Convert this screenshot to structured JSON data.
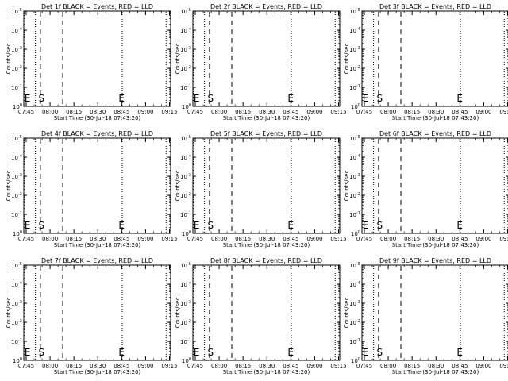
{
  "chart_data": [
    {
      "type": "line",
      "title": "Det 1f BLACK = Events, RED = LLD",
      "xlabel": "Start Time (30-Jul-18 07:43:20)",
      "ylabel": "Counts/sec",
      "xticks": [
        "07:45",
        "08:00",
        "08:15",
        "08:30",
        "08:45",
        "09:00",
        "09:15"
      ],
      "yticks": [
        "10^0",
        "10^-1",
        "10^-2",
        "10^-3",
        "10^-4",
        "10^-5"
      ],
      "yscale": "log",
      "markers": [
        "E",
        "S",
        "E"
      ],
      "series": []
    },
    {
      "type": "line",
      "title": "Det 2f BLACK = Events, RED = LLD",
      "xlabel": "Start Time (30-Jul-18 07:43:20)",
      "ylabel": "Counts/sec",
      "xticks": [
        "07:45",
        "08:00",
        "08:15",
        "08:30",
        "08:45",
        "09:00",
        "09:15"
      ],
      "yticks": [
        "10^0",
        "10^-1",
        "10^-2",
        "10^-3",
        "10^-4",
        "10^-5"
      ],
      "yscale": "log",
      "markers": [
        "E",
        "S",
        "E"
      ],
      "series": []
    },
    {
      "type": "line",
      "title": "Det 3f BLACK = Events, RED = LLD",
      "xlabel": "Start Time (30-Jul-18 07:43:20)",
      "ylabel": "Counts/sec",
      "xticks": [
        "07:45",
        "08:00",
        "08:15",
        "08:30",
        "08:45",
        "09:00",
        "09:15"
      ],
      "yticks": [
        "10^0",
        "10^-1",
        "10^-2",
        "10^-3",
        "10^-4",
        "10^-5"
      ],
      "yscale": "log",
      "markers": [
        "E",
        "S",
        "E"
      ],
      "series": []
    },
    {
      "type": "line",
      "title": "Det 4f BLACK = Events, RED = LLD",
      "xlabel": "Start Time (30-Jul-18 07:43:20)",
      "ylabel": "Counts/sec",
      "xticks": [
        "07:45",
        "08:00",
        "08:15",
        "08:30",
        "08:45",
        "09:00",
        "09:15"
      ],
      "yticks": [
        "10^0",
        "10^-1",
        "10^-2",
        "10^-3",
        "10^-4",
        "10^-5"
      ],
      "yscale": "log",
      "markers": [
        "E",
        "S",
        "E"
      ],
      "series": []
    },
    {
      "type": "line",
      "title": "Det 5f BLACK = Events, RED = LLD",
      "xlabel": "Start Time (30-Jul-18 07:43:20)",
      "ylabel": "Counts/sec",
      "xticks": [
        "07:45",
        "08:00",
        "08:15",
        "08:30",
        "08:45",
        "09:00",
        "09:15"
      ],
      "yticks": [
        "10^0",
        "10^-1",
        "10^-2",
        "10^-3",
        "10^-4",
        "10^-5"
      ],
      "yscale": "log",
      "markers": [
        "E",
        "S",
        "E"
      ],
      "series": []
    },
    {
      "type": "line",
      "title": "Det 6f BLACK = Events, RED = LLD",
      "xlabel": "Start Time (30-Jul-18 07:43:20)",
      "ylabel": "Counts/sec",
      "xticks": [
        "07:45",
        "08:00",
        "08:15",
        "08:30",
        "08:45",
        "09:00",
        "09:15"
      ],
      "yticks": [
        "10^0",
        "10^-1",
        "10^-2",
        "10^-3",
        "10^-4",
        "10^-5"
      ],
      "yscale": "log",
      "markers": [
        "E",
        "S",
        "E"
      ],
      "series": []
    },
    {
      "type": "line",
      "title": "Det 7f BLACK = Events, RED = LLD",
      "xlabel": "Start Time (30-Jul-18 07:43:20)",
      "ylabel": "Counts/sec",
      "xticks": [
        "07:45",
        "08:00",
        "08:15",
        "08:30",
        "08:45",
        "09:00",
        "09:15"
      ],
      "yticks": [
        "10^0",
        "10^-1",
        "10^-2",
        "10^-3",
        "10^-4",
        "10^-5"
      ],
      "yscale": "log",
      "markers": [
        "E",
        "S",
        "E"
      ],
      "series": []
    },
    {
      "type": "line",
      "title": "Det 8f BLACK = Events, RED = LLD",
      "xlabel": "Start Time (30-Jul-18 07:43:20)",
      "ylabel": "Counts/sec",
      "xticks": [
        "07:45",
        "08:00",
        "08:15",
        "08:30",
        "08:45",
        "09:00",
        "09:15"
      ],
      "yticks": [
        "10^0",
        "10^-1",
        "10^-2",
        "10^-3",
        "10^-4",
        "10^-5"
      ],
      "yscale": "log",
      "markers": [
        "E",
        "S",
        "E"
      ],
      "series": []
    },
    {
      "type": "line",
      "title": "Det 9f BLACK = Events, RED = LLD",
      "xlabel": "Start Time (30-Jul-18 07:43:20)",
      "ylabel": "Counts/sec",
      "xticks": [
        "07:45",
        "08:00",
        "08:15",
        "08:30",
        "08:45",
        "09:00",
        "09:15"
      ],
      "yticks": [
        "10^0",
        "10^-1",
        "10^-2",
        "10^-3",
        "10^-4",
        "10^-5"
      ],
      "yscale": "log",
      "markers": [
        "E",
        "S",
        "E"
      ],
      "series": []
    }
  ]
}
